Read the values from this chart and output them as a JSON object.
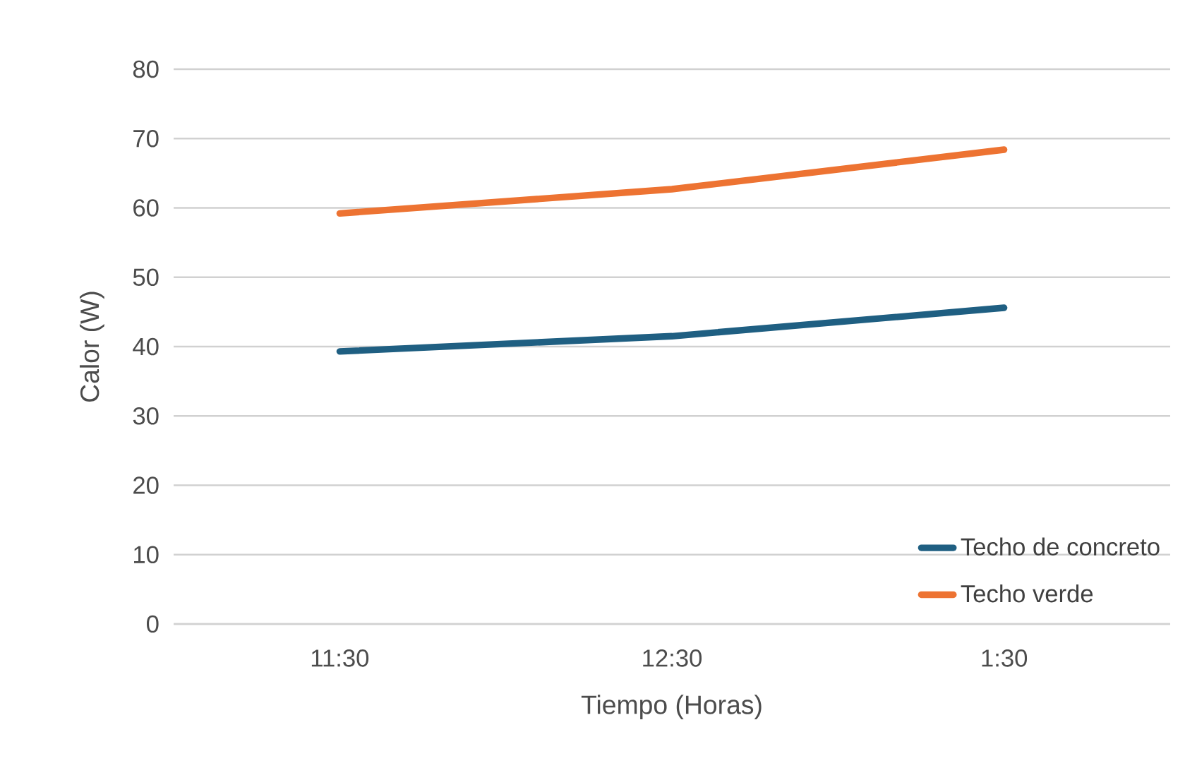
{
  "chart_data": {
    "type": "line",
    "xlabel": "Tiempo (Horas)",
    "ylabel": "Calor  (W)",
    "categories": [
      "11:30",
      "12:30",
      "1:30"
    ],
    "series": [
      {
        "name": "Techo de concreto",
        "color": "#1f5f82",
        "values": [
          39.3,
          41.5,
          45.6
        ]
      },
      {
        "name": "Techo verde",
        "color": "#ed7332",
        "values": [
          59.2,
          62.7,
          68.4
        ]
      }
    ],
    "ylim": [
      0,
      80
    ],
    "yticks": [
      0,
      10,
      20,
      30,
      40,
      50,
      60,
      70,
      80
    ],
    "grid": "y",
    "legend": "bottom right",
    "marker": "none",
    "line_style": "solid"
  }
}
